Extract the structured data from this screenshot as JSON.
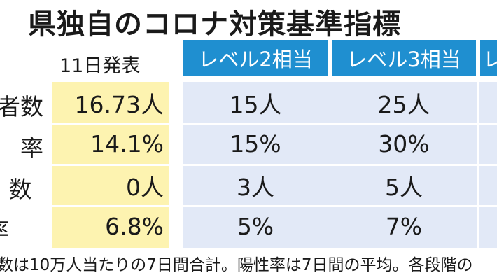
{
  "title": "県独自のコロナ対策基準指標",
  "announcement": "11日発表",
  "headers": [
    "レベル2相当",
    "レベル3相当",
    "レ"
  ],
  "row_labels": [
    "者数",
    "率",
    "数",
    "率"
  ],
  "current_values": [
    "16.73人",
    "14.1%",
    "0人",
    "6.8%"
  ],
  "level2_values": [
    "15人",
    "15%",
    "3人",
    "5%"
  ],
  "level3_values": [
    "25人",
    "30%",
    "5人",
    "7%"
  ],
  "footnote": "数は10万人当たりの7日間合計。陽性率は7日間の平均。各段階の"
}
